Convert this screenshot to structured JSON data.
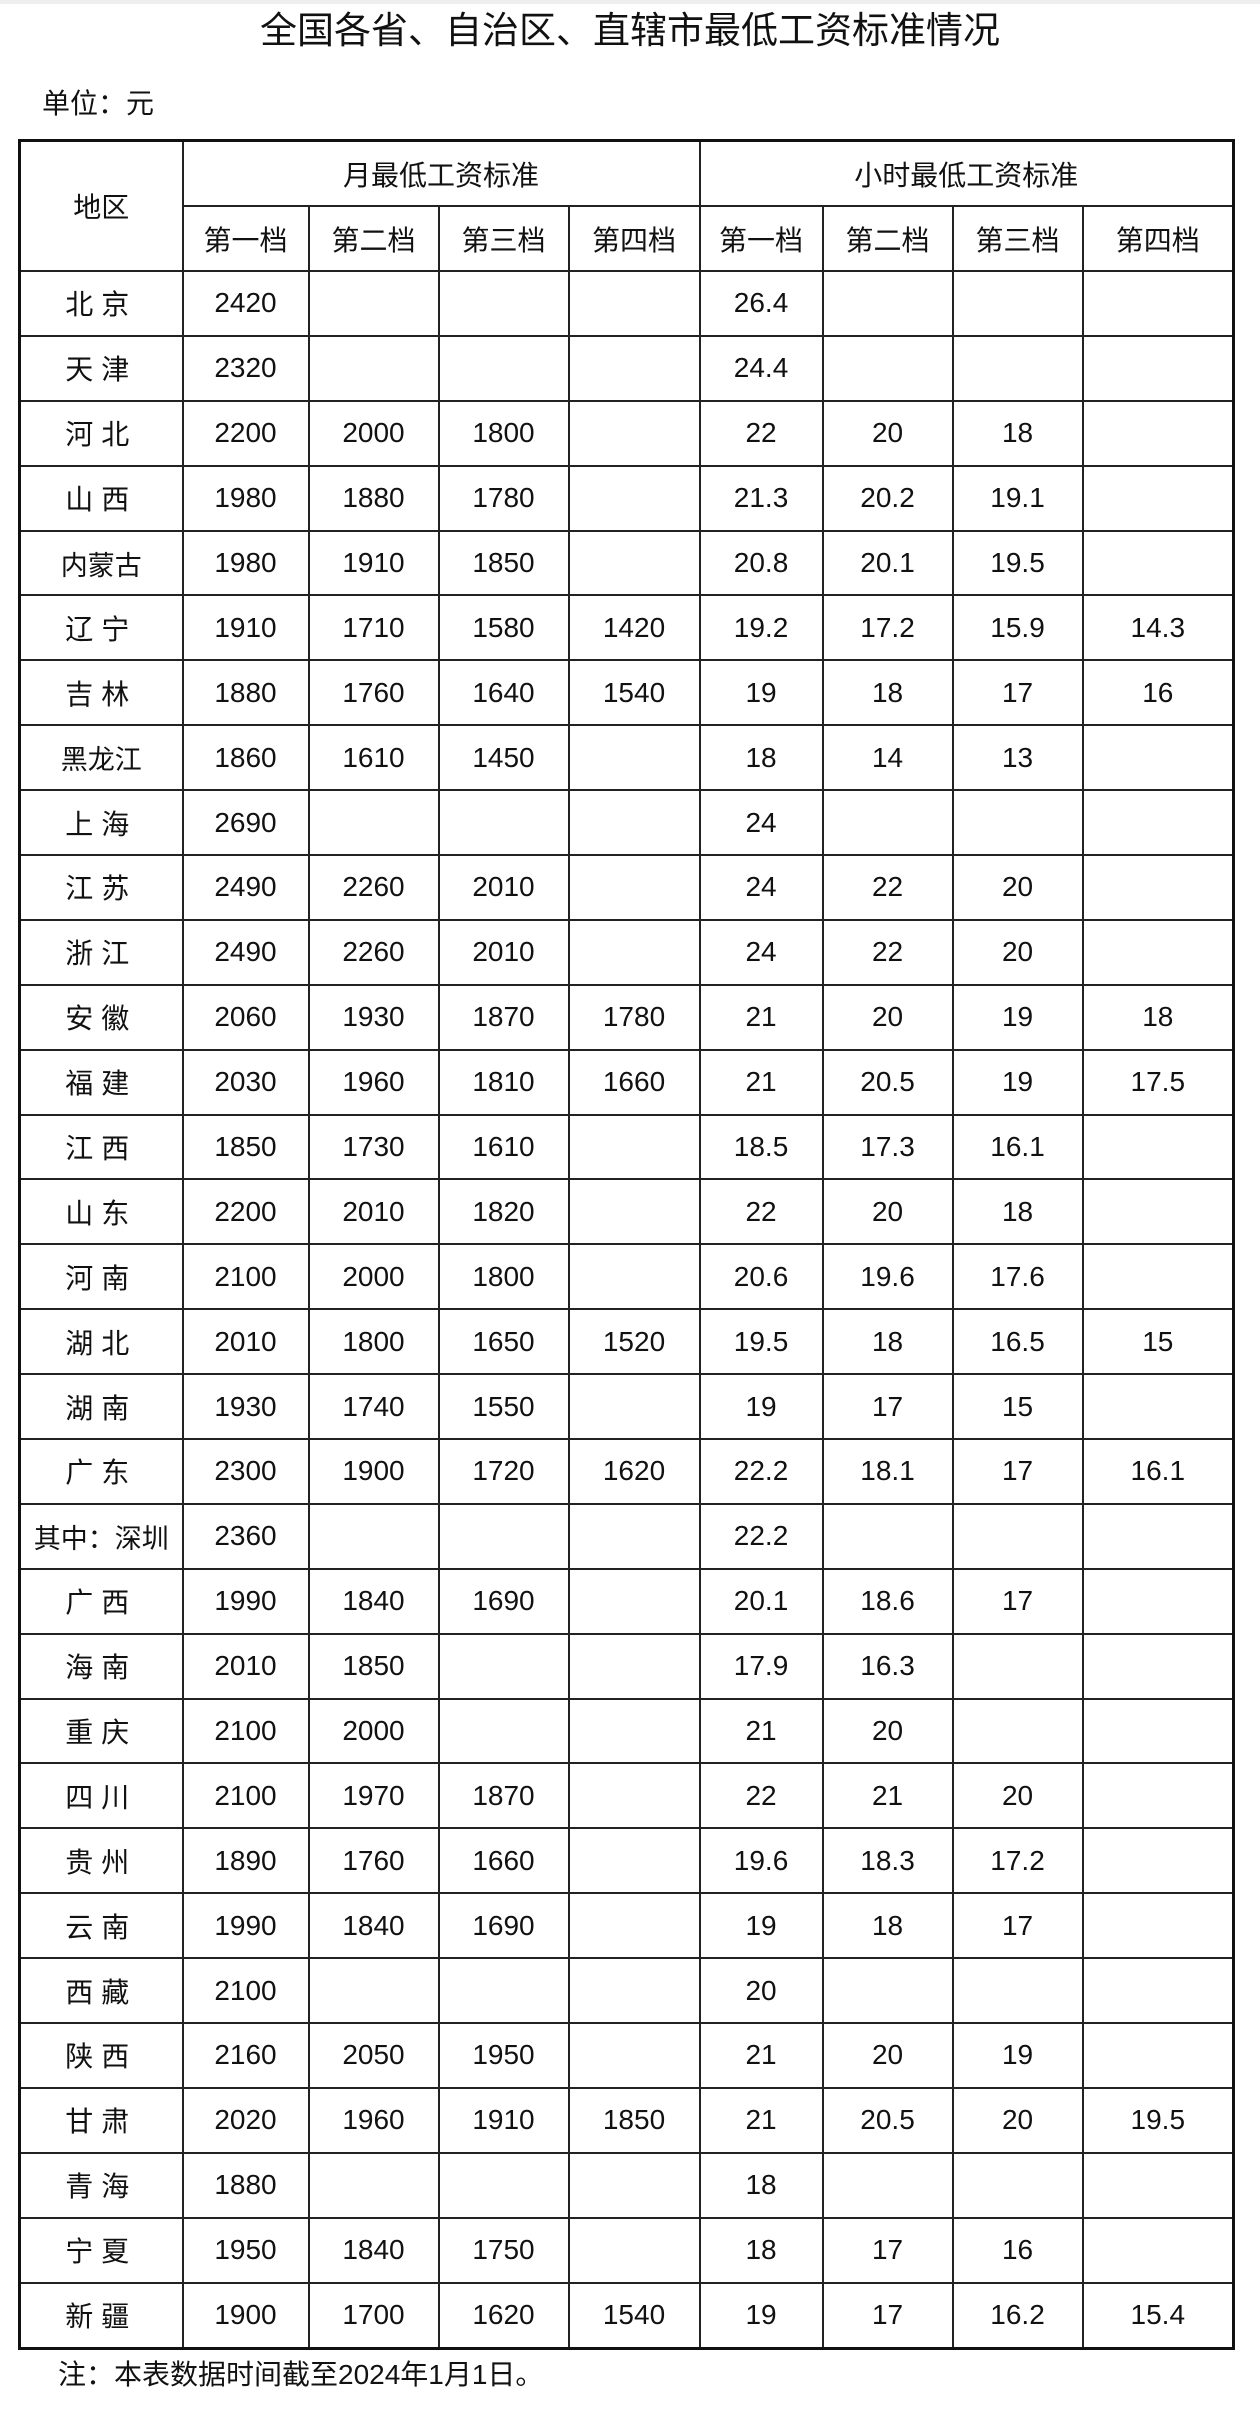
{
  "title": "全国各省、自治区、直辖市最低工资标准情况",
  "unit": "单位：元",
  "table": {
    "region_header": "地区",
    "group_headers": [
      "月最低工资标准",
      "小时最低工资标准"
    ],
    "tier_headers": [
      "第一档",
      "第二档",
      "第三档",
      "第四档",
      "第一档",
      "第二档",
      "第三档",
      "第四档"
    ],
    "rows": [
      [
        "北京",
        "2420",
        "",
        "",
        "",
        "26.4",
        "",
        "",
        ""
      ],
      [
        "天津",
        "2320",
        "",
        "",
        "",
        "24.4",
        "",
        "",
        ""
      ],
      [
        "河北",
        "2200",
        "2000",
        "1800",
        "",
        "22",
        "20",
        "18",
        ""
      ],
      [
        "山西",
        "1980",
        "1880",
        "1780",
        "",
        "21.3",
        "20.2",
        "19.1",
        ""
      ],
      [
        "内蒙古",
        "1980",
        "1910",
        "1850",
        "",
        "20.8",
        "20.1",
        "19.5",
        ""
      ],
      [
        "辽宁",
        "1910",
        "1710",
        "1580",
        "1420",
        "19.2",
        "17.2",
        "15.9",
        "14.3"
      ],
      [
        "吉林",
        "1880",
        "1760",
        "1640",
        "1540",
        "19",
        "18",
        "17",
        "16"
      ],
      [
        "黑龙江",
        "1860",
        "1610",
        "1450",
        "",
        "18",
        "14",
        "13",
        ""
      ],
      [
        "上海",
        "2690",
        "",
        "",
        "",
        "24",
        "",
        "",
        ""
      ],
      [
        "江苏",
        "2490",
        "2260",
        "2010",
        "",
        "24",
        "22",
        "20",
        ""
      ],
      [
        "浙江",
        "2490",
        "2260",
        "2010",
        "",
        "24",
        "22",
        "20",
        ""
      ],
      [
        "安徽",
        "2060",
        "1930",
        "1870",
        "1780",
        "21",
        "20",
        "19",
        "18"
      ],
      [
        "福建",
        "2030",
        "1960",
        "1810",
        "1660",
        "21",
        "20.5",
        "19",
        "17.5"
      ],
      [
        "江西",
        "1850",
        "1730",
        "1610",
        "",
        "18.5",
        "17.3",
        "16.1",
        ""
      ],
      [
        "山东",
        "2200",
        "2010",
        "1820",
        "",
        "22",
        "20",
        "18",
        ""
      ],
      [
        "河南",
        "2100",
        "2000",
        "1800",
        "",
        "20.6",
        "19.6",
        "17.6",
        ""
      ],
      [
        "湖北",
        "2010",
        "1800",
        "1650",
        "1520",
        "19.5",
        "18",
        "16.5",
        "15"
      ],
      [
        "湖南",
        "1930",
        "1740",
        "1550",
        "",
        "19",
        "17",
        "15",
        ""
      ],
      [
        "广东",
        "2300",
        "1900",
        "1720",
        "1620",
        "22.2",
        "18.1",
        "17",
        "16.1"
      ],
      [
        "其中：深圳",
        "2360",
        "",
        "",
        "",
        "22.2",
        "",
        "",
        ""
      ],
      [
        "广西",
        "1990",
        "1840",
        "1690",
        "",
        "20.1",
        "18.6",
        "17",
        ""
      ],
      [
        "海南",
        "2010",
        "1850",
        "",
        "",
        "17.9",
        "16.3",
        "",
        ""
      ],
      [
        "重庆",
        "2100",
        "2000",
        "",
        "",
        "21",
        "20",
        "",
        ""
      ],
      [
        "四川",
        "2100",
        "1970",
        "1870",
        "",
        "22",
        "21",
        "20",
        ""
      ],
      [
        "贵州",
        "1890",
        "1760",
        "1660",
        "",
        "19.6",
        "18.3",
        "17.2",
        ""
      ],
      [
        "云南",
        "1990",
        "1840",
        "1690",
        "",
        "19",
        "18",
        "17",
        ""
      ],
      [
        "西藏",
        "2100",
        "",
        "",
        "",
        "20",
        "",
        "",
        ""
      ],
      [
        "陕西",
        "2160",
        "2050",
        "1950",
        "",
        "21",
        "20",
        "19",
        ""
      ],
      [
        "甘肃",
        "2020",
        "1960",
        "1910",
        "1850",
        "21",
        "20.5",
        "20",
        "19.5"
      ],
      [
        "青海",
        "1880",
        "",
        "",
        "",
        "18",
        "",
        "",
        ""
      ],
      [
        "宁夏",
        "1950",
        "1840",
        "1750",
        "",
        "18",
        "17",
        "16",
        ""
      ],
      [
        "新疆",
        "1900",
        "1700",
        "1620",
        "1540",
        "19",
        "17",
        "16.2",
        "15.4"
      ]
    ]
  },
  "note": "注：本表数据时间截至2024年1月1日。"
}
